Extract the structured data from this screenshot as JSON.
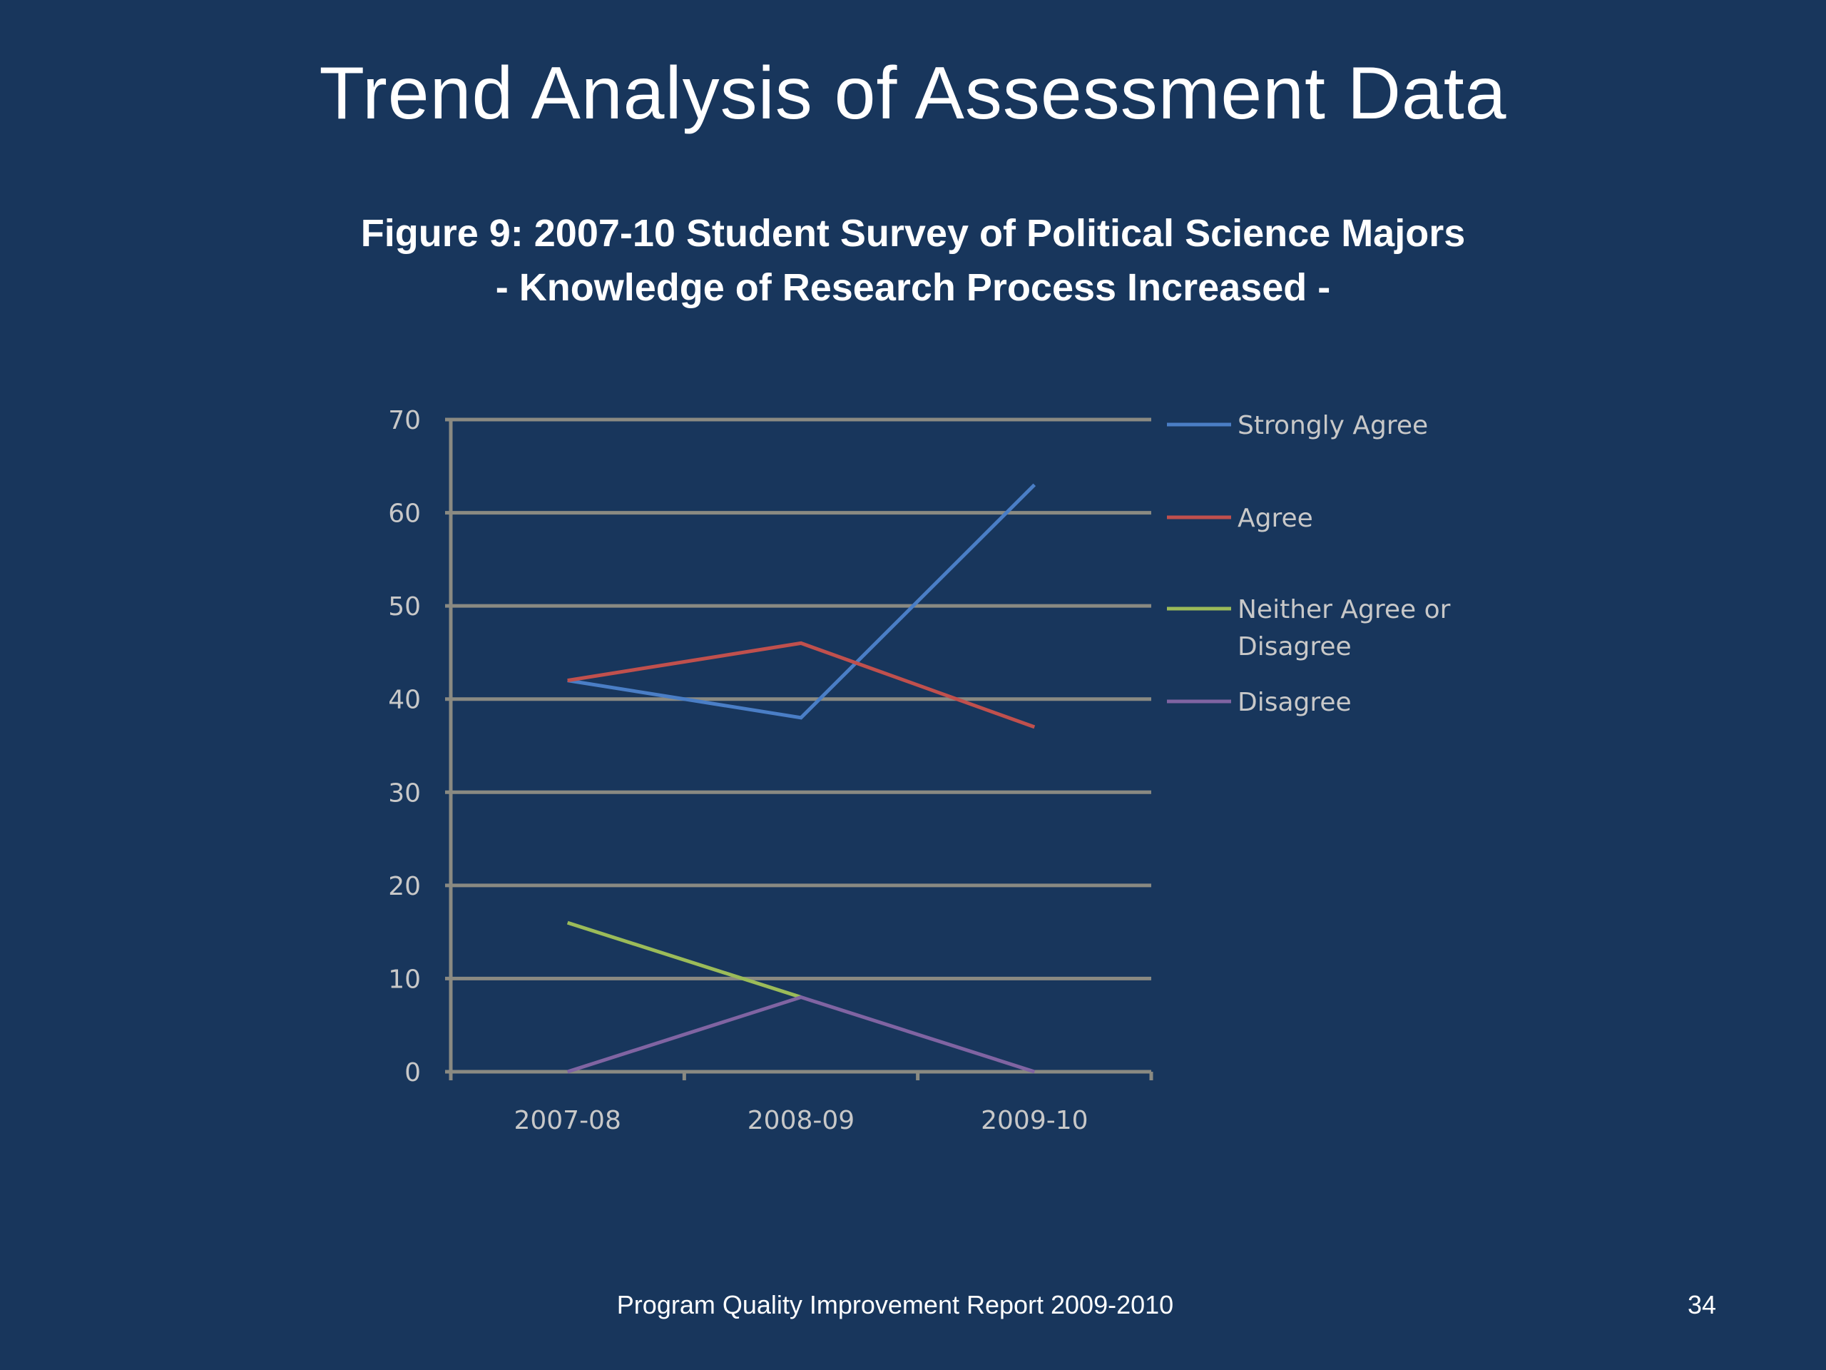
{
  "slide": {
    "title": "Trend Analysis of Assessment Data",
    "footer": "Program Quality Improvement Report 2009-2010",
    "page_number": "34",
    "background_color": "#18365c"
  },
  "chart_data": {
    "type": "line",
    "title": "Figure 9: 2007-10 Student Survey of Political Science Majors",
    "subtitle": "- Knowledge of Research Process Increased -",
    "xlabel": "",
    "ylabel": "",
    "categories": [
      "2007-08",
      "2008-09",
      "2009-10"
    ],
    "ylim": [
      0,
      70
    ],
    "yticks": [
      0,
      10,
      20,
      30,
      40,
      50,
      60,
      70
    ],
    "grid": true,
    "legend_position": "right",
    "series": [
      {
        "name": "Strongly Agree",
        "values": [
          42,
          38,
          63
        ],
        "color": "#4a7ec6"
      },
      {
        "name": "Agree",
        "values": [
          42,
          46,
          37
        ],
        "color": "#c0504d"
      },
      {
        "name": "Neither Agree or Disagree",
        "legend_lines": [
          "Neither Agree or",
          "Disagree"
        ],
        "values": [
          16,
          8,
          null
        ],
        "color": "#9bbb59"
      },
      {
        "name": "Disagree",
        "values": [
          0,
          8,
          0
        ],
        "color": "#8064a2"
      }
    ]
  }
}
